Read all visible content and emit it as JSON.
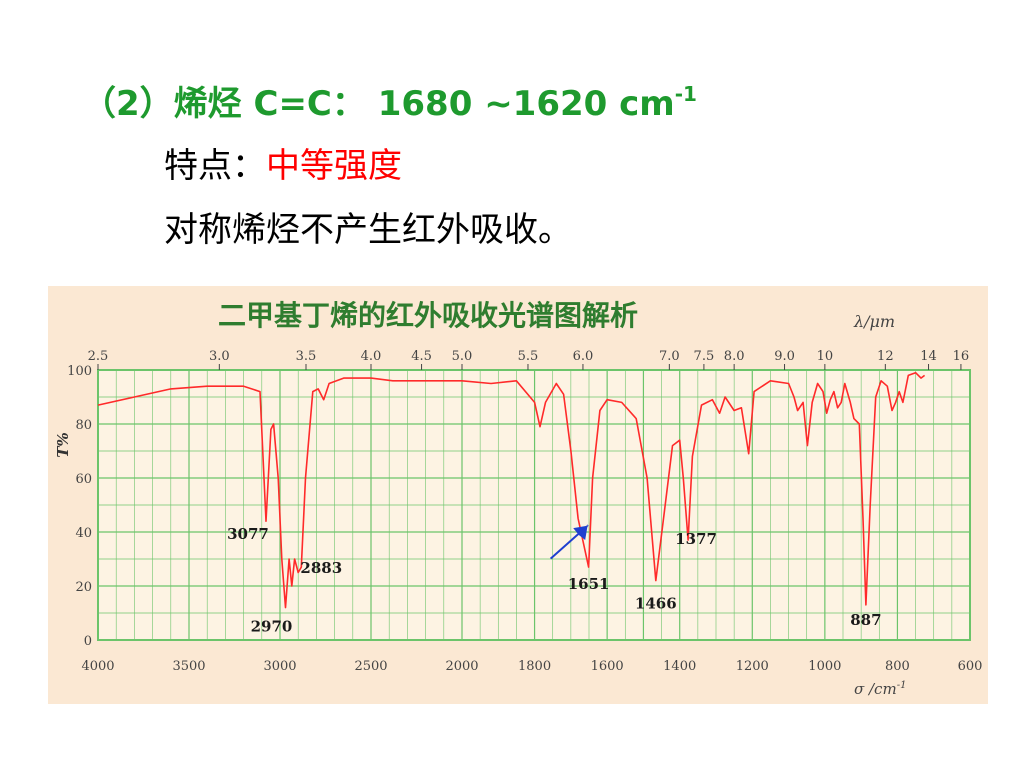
{
  "heading": {
    "prefix": "（2）烯烃 C=C：  1680 ~1620 cm",
    "superscript": "-1"
  },
  "feature": {
    "label": "特点：",
    "value": "中等强度"
  },
  "note": "对称烯烃不产生红外吸收。",
  "colors": {
    "heading_green": "#1e9a2e",
    "highlight_red": "#ff0000",
    "spectrum_red": "#ff2a2a",
    "arrow_blue": "#1f3fd0",
    "grid_green": "#6cc46a",
    "figure_bg": "#fbe8d3"
  },
  "chart_data": {
    "type": "line",
    "title": "二甲基丁烯的红外吸收光谱图解析",
    "x_bottom_unit": "σ /cm",
    "x_bottom_unit_sup": "-1",
    "x_top_unit": "λ/μm",
    "ylabel": "T%",
    "ylim": [
      0,
      100
    ],
    "xlim": [
      4000,
      600
    ],
    "x_bottom_ticks": [
      "4000",
      "3500",
      "3000",
      "2500",
      "2000",
      "1800",
      "1600",
      "1400",
      "1200",
      "1000",
      "800",
      "600"
    ],
    "x_top_ticks": [
      "2.5",
      "3.0",
      "3.5",
      "4.0",
      "4.5",
      "5.0",
      "5.5",
      "6.0",
      "7.5",
      "7.0",
      "8.0",
      "9.0",
      "10",
      "12",
      "14",
      "16"
    ],
    "y_ticks": [
      "0",
      "20",
      "40",
      "60",
      "80",
      "100"
    ],
    "grid": true,
    "series": [
      {
        "points": [
          [
            4000,
            87
          ],
          [
            3800,
            90
          ],
          [
            3600,
            93
          ],
          [
            3400,
            94
          ],
          [
            3200,
            94
          ],
          [
            3110,
            92
          ],
          [
            3077,
            44
          ],
          [
            3050,
            78
          ],
          [
            3035,
            80
          ],
          [
            3010,
            60
          ],
          [
            2990,
            30
          ],
          [
            2970,
            12
          ],
          [
            2950,
            30
          ],
          [
            2935,
            20
          ],
          [
            2920,
            30
          ],
          [
            2900,
            25
          ],
          [
            2883,
            27
          ],
          [
            2860,
            60
          ],
          [
            2820,
            92
          ],
          [
            2790,
            93
          ],
          [
            2760,
            89
          ],
          [
            2730,
            95
          ],
          [
            2650,
            97
          ],
          [
            2500,
            97
          ],
          [
            2380,
            96
          ],
          [
            2200,
            96
          ],
          [
            2000,
            96
          ],
          [
            1920,
            95
          ],
          [
            1850,
            96
          ],
          [
            1800,
            88
          ],
          [
            1785,
            79
          ],
          [
            1770,
            88
          ],
          [
            1740,
            95
          ],
          [
            1720,
            91
          ],
          [
            1700,
            70
          ],
          [
            1680,
            45
          ],
          [
            1651,
            27
          ],
          [
            1640,
            60
          ],
          [
            1620,
            85
          ],
          [
            1600,
            89
          ],
          [
            1560,
            88
          ],
          [
            1520,
            82
          ],
          [
            1490,
            60
          ],
          [
            1466,
            22
          ],
          [
            1440,
            50
          ],
          [
            1420,
            72
          ],
          [
            1400,
            74
          ],
          [
            1390,
            60
          ],
          [
            1377,
            37
          ],
          [
            1365,
            68
          ],
          [
            1340,
            87
          ],
          [
            1310,
            89
          ],
          [
            1290,
            84
          ],
          [
            1275,
            90
          ],
          [
            1250,
            85
          ],
          [
            1230,
            86
          ],
          [
            1210,
            69
          ],
          [
            1195,
            92
          ],
          [
            1150,
            96
          ],
          [
            1100,
            95
          ],
          [
            1085,
            90
          ],
          [
            1075,
            85
          ],
          [
            1060,
            88
          ],
          [
            1048,
            72
          ],
          [
            1035,
            88
          ],
          [
            1020,
            95
          ],
          [
            1005,
            92
          ],
          [
            995,
            84
          ],
          [
            985,
            89
          ],
          [
            975,
            92
          ],
          [
            965,
            86
          ],
          [
            955,
            88
          ],
          [
            945,
            95
          ],
          [
            930,
            88
          ],
          [
            920,
            82
          ],
          [
            905,
            80
          ],
          [
            895,
            45
          ],
          [
            887,
            13
          ],
          [
            875,
            50
          ],
          [
            860,
            90
          ],
          [
            845,
            96
          ],
          [
            828,
            94
          ],
          [
            815,
            85
          ],
          [
            805,
            88
          ],
          [
            795,
            92
          ],
          [
            785,
            88
          ],
          [
            770,
            98
          ],
          [
            750,
            99
          ],
          [
            735,
            97
          ],
          [
            725,
            98
          ]
        ]
      }
    ],
    "annotations": [
      {
        "label": "3077",
        "x": 3077,
        "y": 44
      },
      {
        "label": "2970",
        "x": 2970,
        "y": 12
      },
      {
        "label": "2883",
        "x": 2883,
        "y": 27
      },
      {
        "label": "1651",
        "x": 1651,
        "y": 27
      },
      {
        "label": "1466",
        "x": 1466,
        "y": 22
      },
      {
        "label": "1377",
        "x": 1377,
        "y": 37
      },
      {
        "label": "887",
        "x": 887,
        "y": 13
      }
    ],
    "arrow_target": {
      "x": 1651,
      "y": 42
    }
  }
}
